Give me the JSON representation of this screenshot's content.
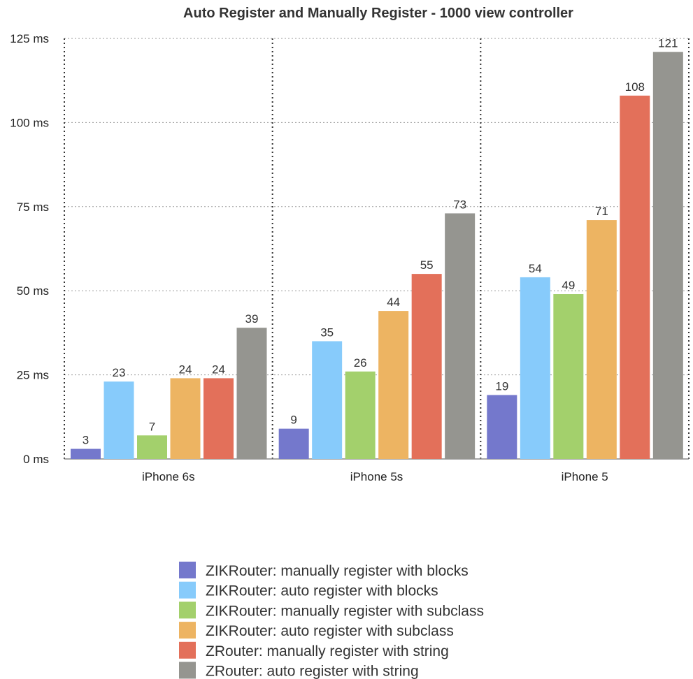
{
  "chart_data": {
    "type": "bar",
    "title": "Auto Register and Manually Register - 1000  view controller",
    "categories": [
      "iPhone 6s",
      "iPhone 5s",
      "iPhone 5"
    ],
    "yticks": [
      "0 ms",
      "25 ms",
      "50 ms",
      "75 ms",
      "100 ms",
      "125 ms"
    ],
    "ylim": [
      0,
      125
    ],
    "grid": true,
    "legend_position": "bottom",
    "series": [
      {
        "name": "ZIKRouter: manually register with blocks",
        "color": "#7478cc",
        "values": [
          3,
          9,
          19
        ]
      },
      {
        "name": "ZIKRouter: auto register with blocks",
        "color": "#87cbfb",
        "values": [
          23,
          35,
          54
        ]
      },
      {
        "name": "ZIKRouter: manually register with subclass",
        "color": "#a3d06c",
        "values": [
          7,
          26,
          49
        ]
      },
      {
        "name": "ZIKRouter: auto register with subclass",
        "color": "#edb462",
        "values": [
          24,
          44,
          71
        ]
      },
      {
        "name": "ZRouter: manually register with string",
        "color": "#e3705a",
        "values": [
          24,
          55,
          108
        ]
      },
      {
        "name": "ZRouter: auto register with string",
        "color": "#959590",
        "values": [
          39,
          73,
          121
        ]
      }
    ]
  }
}
